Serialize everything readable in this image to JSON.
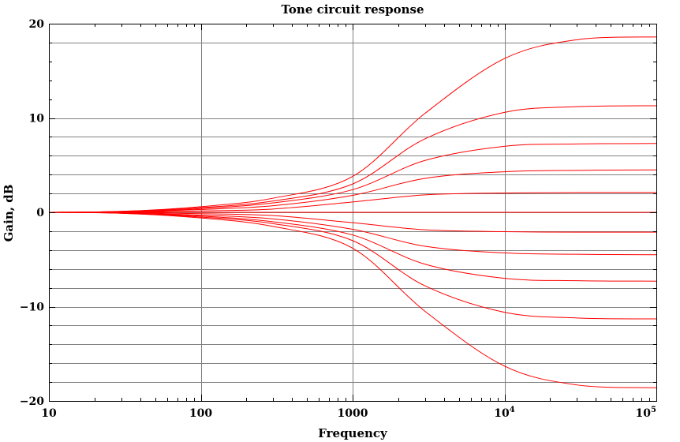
{
  "chart_data": {
    "type": "line",
    "title": "Tone circuit response",
    "xlabel": "Frequency",
    "ylabel": "Gain, dB",
    "xscale": "log",
    "xlim": [
      10,
      100000
    ],
    "ylim": [
      -20,
      20
    ],
    "x_ticks": [
      {
        "base": "10",
        "sup": ""
      },
      {
        "base": "100",
        "sup": ""
      },
      {
        "base": "1000",
        "sup": ""
      },
      {
        "base": "10",
        "sup": "4"
      },
      {
        "base": "10",
        "sup": "5"
      }
    ],
    "x_tick_values": [
      10,
      100,
      1000,
      10000,
      100000
    ],
    "y_ticks": [
      "20",
      "10",
      "0",
      "−10",
      "−20"
    ],
    "y_tick_values": [
      20,
      10,
      0,
      -10,
      -20
    ],
    "grid": true,
    "y_gridlines": [
      18,
      10,
      8,
      6,
      4,
      2,
      0,
      -2,
      -4,
      -6,
      -8,
      -10,
      -12,
      -14,
      -16,
      -18
    ],
    "x_gridlines": [
      100,
      1000,
      10000
    ],
    "series_color": "#ff0000",
    "series": [
      {
        "x": [
          10,
          30,
          100,
          300,
          1000,
          3000,
          10000,
          30000,
          100000
        ],
        "values": [
          0,
          0.1,
          0.6,
          1.5,
          3.8,
          10.5,
          16.3,
          18.3,
          18.6
        ]
      },
      {
        "x": [
          10,
          30,
          100,
          300,
          1000,
          3000,
          10000,
          30000,
          100000
        ],
        "values": [
          0,
          0.1,
          0.5,
          1.2,
          3.0,
          7.8,
          10.6,
          11.2,
          11.3
        ]
      },
      {
        "x": [
          10,
          30,
          100,
          300,
          1000,
          3000,
          10000,
          30000,
          100000
        ],
        "values": [
          0,
          0.08,
          0.4,
          1.0,
          2.4,
          5.5,
          7.0,
          7.25,
          7.3
        ]
      },
      {
        "x": [
          10,
          30,
          100,
          300,
          1000,
          3000,
          10000,
          30000,
          100000
        ],
        "values": [
          0,
          0.06,
          0.3,
          0.7,
          1.8,
          3.6,
          4.3,
          4.45,
          4.5
        ]
      },
      {
        "x": [
          10,
          30,
          100,
          300,
          1000,
          3000,
          10000,
          30000,
          100000
        ],
        "values": [
          0,
          0.04,
          0.15,
          0.35,
          1.1,
          1.85,
          2.05,
          2.1,
          2.1
        ]
      },
      {
        "x": [
          10,
          30,
          100,
          300,
          1000,
          3000,
          10000,
          30000,
          100000
        ],
        "values": [
          0,
          0,
          0,
          0,
          0,
          0,
          0,
          0,
          0
        ]
      },
      {
        "x": [
          10,
          30,
          100,
          300,
          1000,
          3000,
          10000,
          30000,
          100000
        ],
        "values": [
          0,
          -0.04,
          -0.15,
          -0.35,
          -1.1,
          -1.85,
          -2.05,
          -2.1,
          -2.1
        ]
      },
      {
        "x": [
          10,
          30,
          100,
          300,
          1000,
          3000,
          10000,
          30000,
          100000
        ],
        "values": [
          0,
          -0.06,
          -0.3,
          -0.7,
          -1.8,
          -3.6,
          -4.3,
          -4.45,
          -4.5
        ]
      },
      {
        "x": [
          10,
          30,
          100,
          300,
          1000,
          3000,
          10000,
          30000,
          100000
        ],
        "values": [
          0,
          -0.08,
          -0.4,
          -1.0,
          -2.4,
          -5.5,
          -7.0,
          -7.25,
          -7.3
        ]
      },
      {
        "x": [
          10,
          30,
          100,
          300,
          1000,
          3000,
          10000,
          30000,
          100000
        ],
        "values": [
          0,
          -0.1,
          -0.5,
          -1.2,
          -3.0,
          -7.8,
          -10.6,
          -11.2,
          -11.3
        ]
      },
      {
        "x": [
          10,
          30,
          100,
          300,
          1000,
          3000,
          10000,
          30000,
          100000
        ],
        "values": [
          0,
          -0.1,
          -0.6,
          -1.5,
          -3.8,
          -10.5,
          -16.3,
          -18.3,
          -18.6
        ]
      }
    ]
  }
}
